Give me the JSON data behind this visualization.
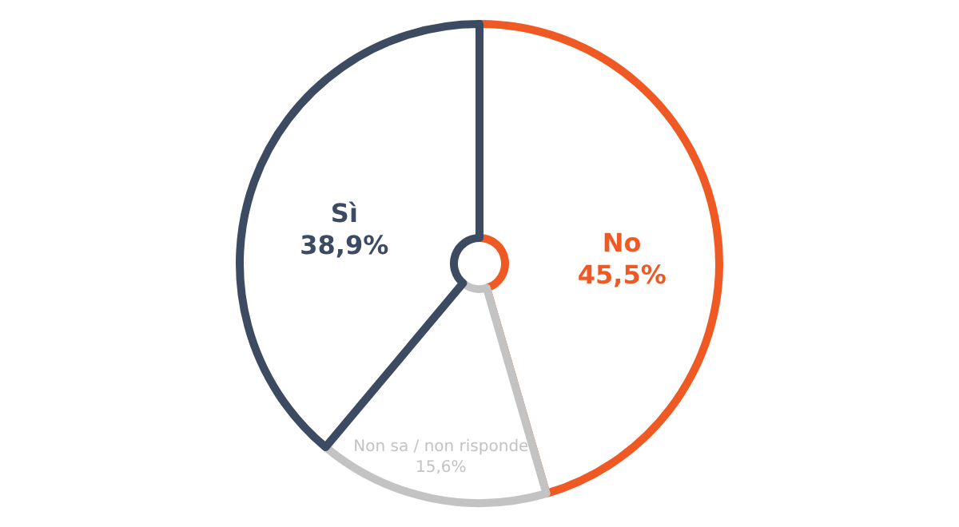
{
  "chart_data": {
    "type": "pie",
    "categories": [
      "No",
      "Non sa / non risponde",
      "Sì"
    ],
    "values": [
      45.5,
      15.6,
      38.9
    ],
    "value_labels": [
      "45,5%",
      "15,6%",
      "38,9%"
    ],
    "colors": [
      "#ef5a24",
      "#c3c3c3",
      "#3c4a62"
    ]
  }
}
